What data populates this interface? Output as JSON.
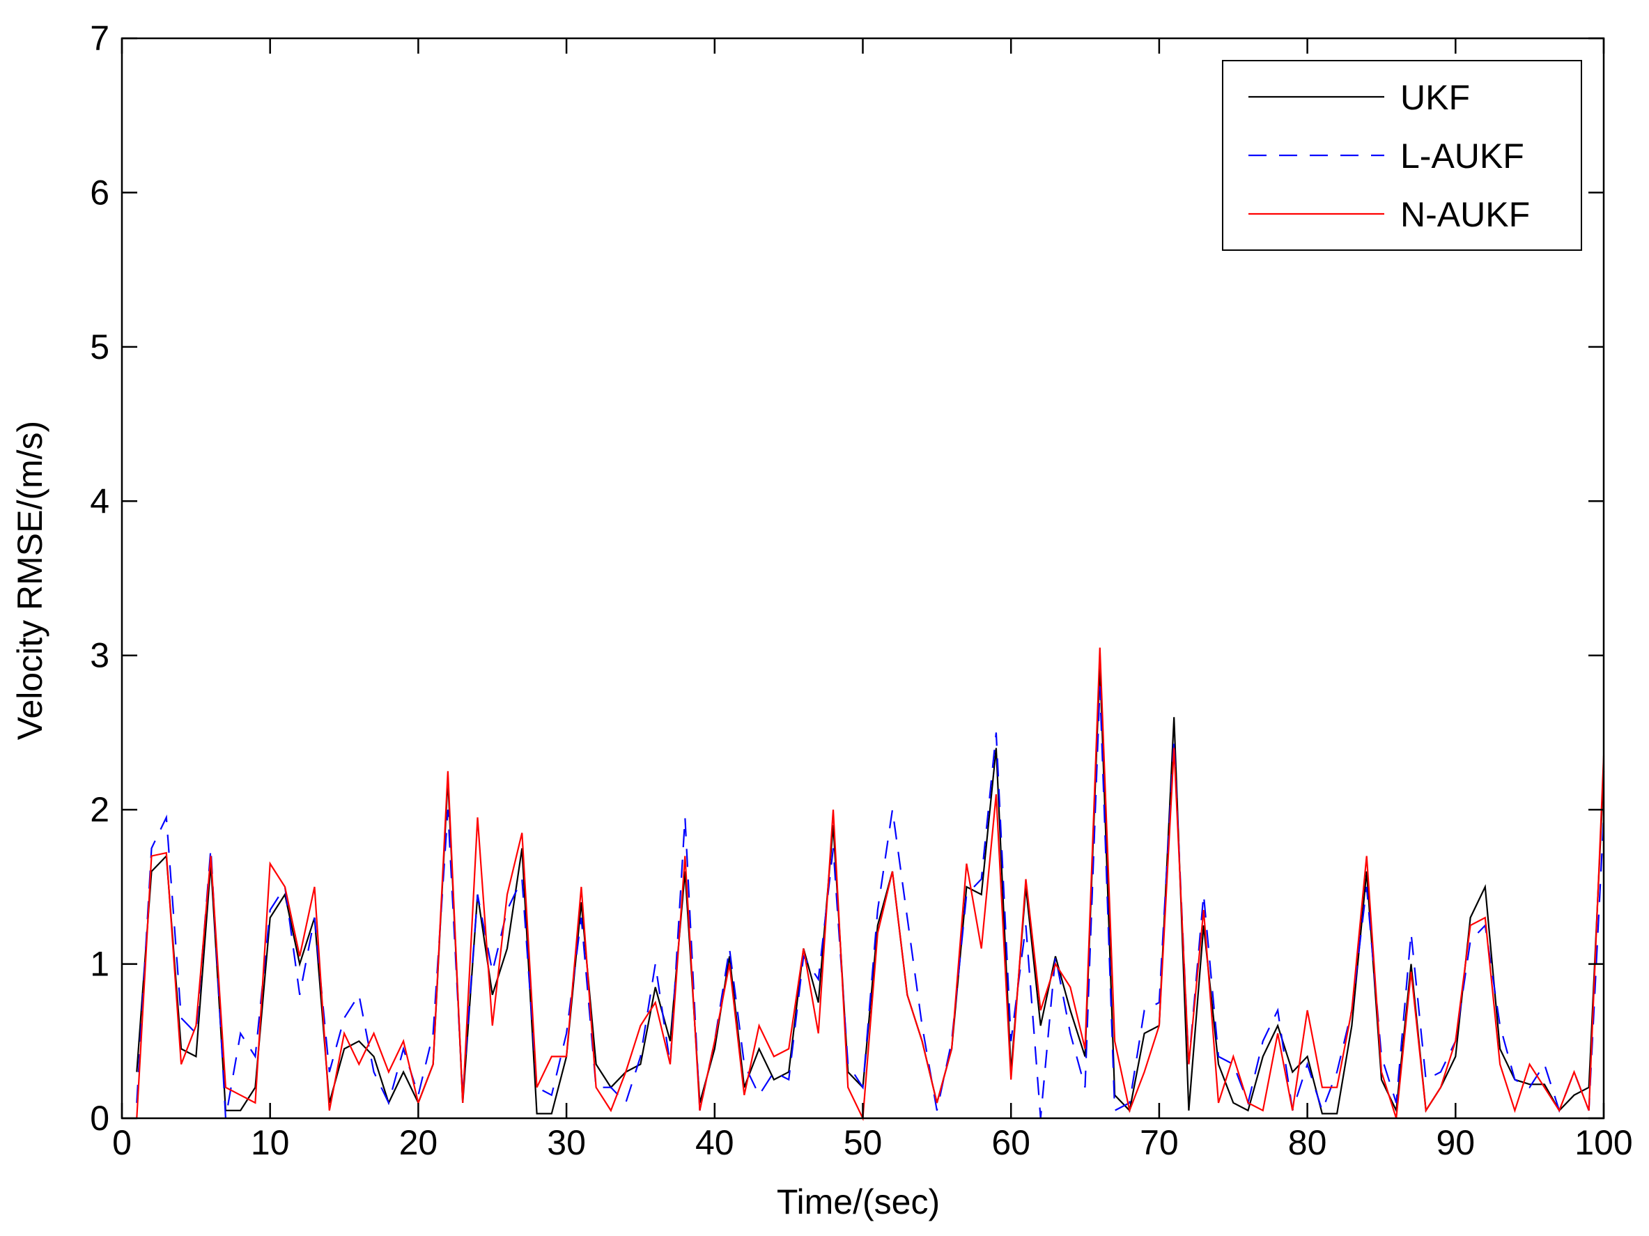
{
  "chart_data": {
    "type": "line",
    "xlabel": "Time/(sec)",
    "ylabel": "Velocity RMSE/(m/s)",
    "xlim": [
      0,
      100
    ],
    "ylim": [
      0,
      7
    ],
    "xticks": [
      0,
      10,
      20,
      30,
      40,
      50,
      60,
      70,
      80,
      90,
      100
    ],
    "yticks": [
      0,
      1,
      2,
      3,
      4,
      5,
      6,
      7
    ],
    "grid": false,
    "legend_position": "top-right",
    "x": [
      1,
      2,
      3,
      4,
      5,
      6,
      7,
      8,
      9,
      10,
      11,
      12,
      13,
      14,
      15,
      16,
      17,
      18,
      19,
      20,
      21,
      22,
      23,
      24,
      25,
      26,
      27,
      28,
      29,
      30,
      31,
      32,
      33,
      34,
      35,
      36,
      37,
      38,
      39,
      40,
      41,
      42,
      43,
      44,
      45,
      46,
      47,
      48,
      49,
      50,
      51,
      52,
      53,
      54,
      55,
      56,
      57,
      58,
      59,
      60,
      61,
      62,
      63,
      64,
      65,
      66,
      67,
      68,
      69,
      70,
      71,
      72,
      73,
      74,
      75,
      76,
      77,
      78,
      79,
      80,
      81,
      82,
      83,
      84,
      85,
      86,
      87,
      88,
      89,
      90,
      91,
      92,
      93,
      94,
      95,
      96,
      97,
      98,
      99,
      100
    ],
    "series": [
      {
        "name": "UKF",
        "color": "#000000",
        "dash": "solid",
        "values": [
          0.3,
          1.6,
          1.7,
          0.45,
          0.4,
          1.65,
          0.05,
          0.05,
          0.2,
          1.3,
          1.45,
          1.0,
          1.3,
          0.1,
          0.45,
          0.5,
          0.4,
          0.1,
          0.3,
          0.1,
          0.35,
          2.2,
          0.1,
          1.45,
          0.8,
          1.1,
          1.75,
          0.03,
          0.03,
          0.4,
          1.4,
          0.35,
          0.2,
          0.3,
          0.35,
          0.85,
          0.5,
          1.6,
          0.1,
          0.45,
          1.05,
          0.2,
          0.45,
          0.25,
          0.3,
          1.1,
          0.75,
          1.9,
          0.3,
          0.2,
          1.25,
          1.6,
          0.8,
          0.5,
          0.1,
          0.45,
          1.5,
          1.45,
          2.4,
          0.3,
          1.5,
          0.6,
          1.05,
          0.7,
          0.4,
          2.95,
          0.15,
          0.05,
          0.55,
          0.6,
          2.6,
          0.05,
          1.25,
          0.35,
          0.1,
          0.05,
          0.4,
          0.6,
          0.3,
          0.4,
          0.03,
          0.03,
          0.6,
          1.6,
          0.25,
          0.05,
          1.0,
          0.05,
          0.2,
          0.4,
          1.3,
          1.5,
          0.45,
          0.25,
          0.22,
          0.22,
          0.05,
          0.15,
          0.2,
          2.25
        ]
      },
      {
        "name": "L-AUKF",
        "color": "#0000ff",
        "dash": "dashed",
        "values": [
          0.1,
          1.75,
          1.95,
          0.65,
          0.55,
          1.75,
          0.0,
          0.55,
          0.4,
          1.35,
          1.5,
          0.8,
          1.3,
          0.3,
          0.65,
          0.8,
          0.3,
          0.1,
          0.45,
          0.15,
          0.55,
          2.0,
          0.15,
          1.45,
          0.95,
          1.35,
          1.55,
          0.2,
          0.15,
          0.55,
          1.3,
          0.2,
          0.2,
          0.1,
          0.4,
          1.0,
          0.35,
          1.95,
          0.05,
          0.5,
          1.1,
          0.35,
          0.15,
          0.3,
          0.25,
          1.05,
          0.9,
          1.75,
          0.35,
          0.2,
          1.35,
          2.0,
          1.3,
          0.6,
          0.05,
          0.5,
          1.45,
          1.55,
          2.5,
          0.5,
          1.25,
          0.0,
          1.05,
          0.55,
          0.2,
          2.8,
          0.05,
          0.1,
          0.7,
          0.75,
          2.45,
          0.35,
          1.45,
          0.4,
          0.35,
          0.1,
          0.5,
          0.7,
          0.05,
          0.35,
          0.05,
          0.3,
          0.7,
          1.5,
          0.4,
          0.1,
          1.2,
          0.25,
          0.3,
          0.5,
          1.15,
          1.25,
          0.6,
          0.25,
          0.2,
          0.35,
          0.05,
          0.3,
          0.05,
          1.95
        ]
      },
      {
        "name": "N-AUKF",
        "color": "#ff0000",
        "dash": "solid",
        "values": [
          0.0,
          1.7,
          1.72,
          0.35,
          0.6,
          1.7,
          0.2,
          0.15,
          0.1,
          1.65,
          1.5,
          1.05,
          1.5,
          0.05,
          0.55,
          0.35,
          0.55,
          0.3,
          0.5,
          0.1,
          0.35,
          2.25,
          0.1,
          1.95,
          0.6,
          1.45,
          1.85,
          0.2,
          0.4,
          0.4,
          1.5,
          0.2,
          0.05,
          0.3,
          0.6,
          0.75,
          0.35,
          1.7,
          0.05,
          0.5,
          1.0,
          0.15,
          0.6,
          0.4,
          0.45,
          1.1,
          0.55,
          2.0,
          0.2,
          0.0,
          1.2,
          1.6,
          0.8,
          0.5,
          0.1,
          0.45,
          1.65,
          1.1,
          2.1,
          0.25,
          1.55,
          0.7,
          1.0,
          0.85,
          0.45,
          3.05,
          0.5,
          0.05,
          0.3,
          0.6,
          2.4,
          0.35,
          1.35,
          0.1,
          0.4,
          0.1,
          0.05,
          0.55,
          0.05,
          0.7,
          0.2,
          0.2,
          0.7,
          1.7,
          0.3,
          0.0,
          0.95,
          0.05,
          0.2,
          0.5,
          1.25,
          1.3,
          0.35,
          0.05,
          0.35,
          0.2,
          0.05,
          0.3,
          0.05,
          2.35
        ]
      }
    ]
  }
}
